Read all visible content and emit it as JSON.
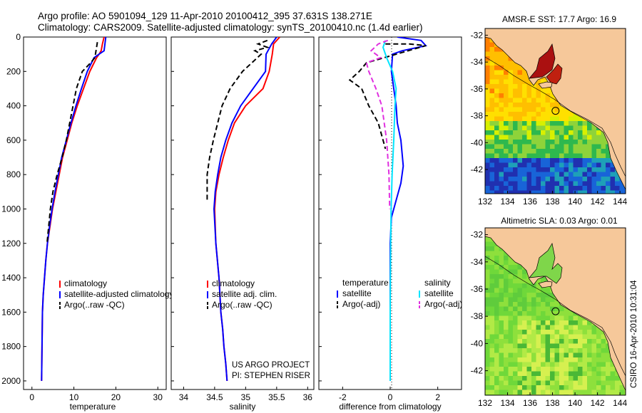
{
  "header": {
    "line1": "Argo profile: AO 5901094_129 11-Apr-2010 20100412_395 37.631S 138.271E",
    "line2": "Climatology: CARS2009. Satellite-adjusted climatology: synTS_20100410.nc (1.4d earlier)"
  },
  "colors": {
    "climatology": "#ff0000",
    "satellite": "#0000ff",
    "argo": "#000000",
    "satellite_salinity": "#00e5ff",
    "argo_salinity_adj": "#e030e0",
    "land": "#f6c89a"
  },
  "chart_data": [
    {
      "type": "line",
      "id": "temperature",
      "xlabel": "temperature",
      "xlim": [
        -2,
        32
      ],
      "ylim": [
        0,
        2050
      ],
      "y_reversed": true,
      "xticks": [
        0,
        10,
        20,
        30
      ],
      "yticks": [
        0,
        200,
        400,
        600,
        800,
        1000,
        1200,
        1400,
        1600,
        1800,
        2000
      ],
      "legend": [
        "climatology",
        "satellite-adjusted climatology",
        "Argo(..raw -QC)"
      ],
      "series": [
        {
          "name": "climatology",
          "color": "#ff0000",
          "dash": false,
          "x": [
            17.2,
            16.8,
            16.5,
            16.0,
            15.4,
            13.8,
            12.3,
            10.8,
            9.5,
            8.4,
            7.3,
            6.5,
            5.7,
            4.9,
            4.3,
            3.7,
            3.3,
            3.0,
            2.7,
            2.5,
            2.4,
            2.3
          ],
          "y": [
            0,
            40,
            80,
            100,
            120,
            200,
            300,
            400,
            500,
            600,
            700,
            800,
            900,
            1000,
            1100,
            1200,
            1300,
            1400,
            1500,
            1600,
            1800,
            2000
          ]
        },
        {
          "name": "satellite-adjusted climatology",
          "color": "#0000ff",
          "dash": false,
          "x": [
            17.6,
            17.4,
            17.2,
            16.0,
            14.8,
            13.2,
            11.8,
            10.5,
            9.3,
            8.2,
            7.1,
            6.3,
            5.5,
            4.8,
            4.2,
            3.7,
            3.3,
            3.0,
            2.7,
            2.5,
            2.4,
            2.3
          ],
          "y": [
            0,
            40,
            80,
            100,
            120,
            200,
            300,
            400,
            500,
            600,
            700,
            800,
            900,
            1000,
            1100,
            1200,
            1300,
            1400,
            1500,
            1600,
            1800,
            2000
          ]
        },
        {
          "name": "Argo(..raw -QC)",
          "color": "#000000",
          "dash": true,
          "x": [
            15.6,
            15.4,
            15.2,
            15.0,
            14.0,
            12.0,
            10.6,
            9.8,
            9.0,
            8.2,
            7.2,
            6.0,
            5.0,
            4.4,
            4.0,
            3.6
          ],
          "y": [
            30,
            60,
            90,
            120,
            150,
            200,
            300,
            400,
            500,
            600,
            700,
            800,
            900,
            1000,
            1100,
            1200
          ]
        }
      ]
    },
    {
      "type": "line",
      "id": "salinity",
      "xlabel": "salinity",
      "xlim": [
        33.8,
        36.1
      ],
      "ylim": [
        0,
        2050
      ],
      "y_reversed": true,
      "xticks": [
        34,
        34.5,
        35,
        35.5,
        36
      ],
      "yticks": [
        0,
        200,
        400,
        600,
        800,
        1000,
        1200,
        1400,
        1600,
        1800,
        2000
      ],
      "legend": [
        "climatology",
        "satellite adj. clim.",
        "Argo(..raw -QC)"
      ],
      "series": [
        {
          "name": "climatology",
          "color": "#ff0000",
          "dash": false,
          "x": [
            35.55,
            35.45,
            35.43,
            35.38,
            35.28,
            35.0,
            34.82,
            34.72,
            34.64,
            34.57,
            34.52,
            34.5,
            34.52,
            34.57,
            34.6,
            34.63,
            34.65,
            34.68,
            34.7
          ],
          "y": [
            0,
            40,
            100,
            200,
            300,
            400,
            500,
            600,
            700,
            800,
            900,
            1000,
            1200,
            1400,
            1600,
            1700,
            1800,
            1900,
            2000
          ]
        },
        {
          "name": "satellite adj. clim.",
          "color": "#0000ff",
          "dash": false,
          "x": [
            35.5,
            35.42,
            35.33,
            35.32,
            35.12,
            34.92,
            34.78,
            34.68,
            34.6,
            34.55,
            34.51,
            34.49,
            34.52,
            34.57,
            34.6,
            34.63,
            34.65,
            34.68,
            34.7
          ],
          "y": [
            0,
            40,
            100,
            200,
            300,
            400,
            500,
            600,
            700,
            800,
            900,
            1000,
            1200,
            1400,
            1600,
            1700,
            1800,
            1900,
            2000
          ]
        },
        {
          "name": "Argo(..raw -QC)",
          "color": "#000000",
          "dash": true,
          "x": [
            35.35,
            35.2,
            35.35,
            35.15,
            35.25,
            34.95,
            34.75,
            34.62,
            34.55,
            34.48,
            34.42,
            34.38,
            34.38
          ],
          "y": [
            20,
            40,
            60,
            80,
            100,
            200,
            300,
            400,
            500,
            600,
            700,
            800,
            950
          ]
        }
      ]
    },
    {
      "type": "line",
      "id": "difference",
      "xlabel": "difference from climatology",
      "xlim": [
        -3,
        3
      ],
      "ylim": [
        0,
        2050
      ],
      "y_reversed": true,
      "xticks": [
        -2,
        0,
        2
      ],
      "yticks": [
        0,
        200,
        400,
        600,
        800,
        1000,
        1200,
        1400,
        1600,
        1800,
        2000
      ],
      "legend_groups": [
        {
          "title": "temperature",
          "items": [
            "satellite",
            "Argo(-adj)"
          ]
        },
        {
          "title": "salinity",
          "items": [
            "satellite",
            "Argo(-adj)"
          ]
        }
      ],
      "series": [
        {
          "name": "temperature satellite",
          "color": "#0000ff",
          "dash": false,
          "x": [
            0.3,
            1.3,
            1.5,
            0.5,
            0.1,
            0.05,
            0.15,
            0.25,
            0.3,
            0.45,
            0.55,
            0.45,
            0.25,
            0.05,
            0.0,
            0.0,
            0.0,
            0.0,
            0.0
          ],
          "y": [
            0,
            20,
            50,
            80,
            100,
            200,
            300,
            400,
            500,
            600,
            750,
            850,
            950,
            1050,
            1200,
            1400,
            1600,
            1800,
            2000
          ]
        },
        {
          "name": "temperature Argo(-adj)",
          "color": "#000000",
          "dash": true,
          "x": [
            -0.2,
            0.8,
            1.5,
            0.5,
            -1.0,
            -1.3,
            -1.7,
            -1.2,
            -0.9,
            -0.5,
            -0.3,
            -0.2
          ],
          "y": [
            40,
            40,
            50,
            90,
            150,
            200,
            250,
            300,
            400,
            500,
            600,
            650
          ]
        },
        {
          "name": "salinity satellite",
          "color": "#00e5ff",
          "dash": false,
          "x": [
            -0.2,
            -0.3,
            -0.15,
            0.1,
            0.25,
            0.2,
            0.15,
            0.08,
            0.04,
            0.02,
            0.01,
            0.0,
            0.0,
            0.0
          ],
          "y": [
            20,
            60,
            120,
            200,
            300,
            400,
            600,
            800,
            1000,
            1200,
            1400,
            1600,
            1800,
            2000
          ]
        },
        {
          "name": "salinity Argo(-adj)",
          "color": "#e030e0",
          "dash": true,
          "x": [
            -0.1,
            -0.5,
            -0.8,
            -0.4,
            -1.0,
            -0.9,
            -0.6,
            -0.35,
            -0.15,
            -0.05,
            -0.02
          ],
          "y": [
            20,
            40,
            80,
            120,
            150,
            200,
            300,
            400,
            600,
            800,
            1000
          ]
        }
      ]
    },
    {
      "type": "heatmap",
      "id": "sst-map",
      "title": "AMSR-E SST: 17.7 Argo: 16.9",
      "xlim": [
        132,
        144.5
      ],
      "ylim": [
        -43.8,
        -31.5
      ],
      "xticks": [
        132,
        134,
        136,
        138,
        140,
        142,
        144
      ],
      "yticks": [
        -32,
        -34,
        -36,
        -38,
        -40,
        -42
      ],
      "argo_marker": {
        "lon": 138.27,
        "lat": -37.63
      }
    },
    {
      "type": "heatmap",
      "id": "sla-map",
      "title": "Altimetric SLA: 0.03 Argo: 0.01",
      "xlim": [
        132,
        144.5
      ],
      "ylim": [
        -43.8,
        -31.5
      ],
      "xticks": [
        132,
        134,
        136,
        138,
        140,
        142,
        144
      ],
      "yticks": [
        -32,
        -34,
        -36,
        -38,
        -40,
        -42
      ],
      "argo_marker": {
        "lon": 138.27,
        "lat": -37.63
      }
    }
  ],
  "annotations": {
    "project": "US ARGO PROJECT",
    "pi": "PI: STEPHEN RISER",
    "stamp": "CSIRO 16-Apr-2010 10:31:04"
  }
}
